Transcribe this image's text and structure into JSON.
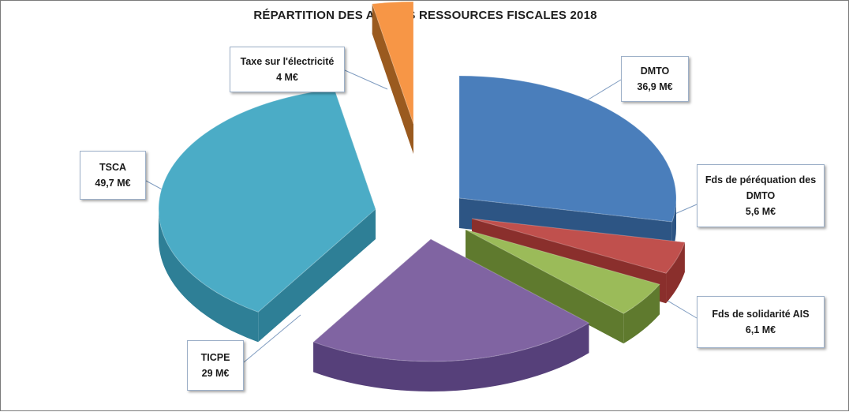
{
  "chart_data": {
    "type": "pie",
    "title": "RÉPARTITION DES AUTRES RESSOURCES FISCALES 2018",
    "slices": [
      {
        "name": "DMTO",
        "value_label": "36,9 M€",
        "value": 36.9,
        "color": "#4a7ebb",
        "side": "#2d5584"
      },
      {
        "name": "Fds de péréquation des DMTO",
        "value_label": "5,6 M€",
        "value": 5.6,
        "color": "#c0504d",
        "side": "#8a2f2c"
      },
      {
        "name": "Fds de solidarité AIS",
        "value_label": "6,1 M€",
        "value": 6.1,
        "color": "#9bbb59",
        "side": "#5f7a2e"
      },
      {
        "name": "TICPE",
        "value_label": "29 M€",
        "value": 29,
        "color": "#8064a2",
        "side": "#56407a"
      },
      {
        "name": "TSCA",
        "value_label": "49,7 M€",
        "value": 49.7,
        "color": "#4bacc6",
        "side": "#2e7f96"
      },
      {
        "name": "Taxe sur l'électricité",
        "value_label": "4 M€",
        "value": 4,
        "color": "#f79646",
        "side": "#9a5a1f"
      }
    ]
  }
}
